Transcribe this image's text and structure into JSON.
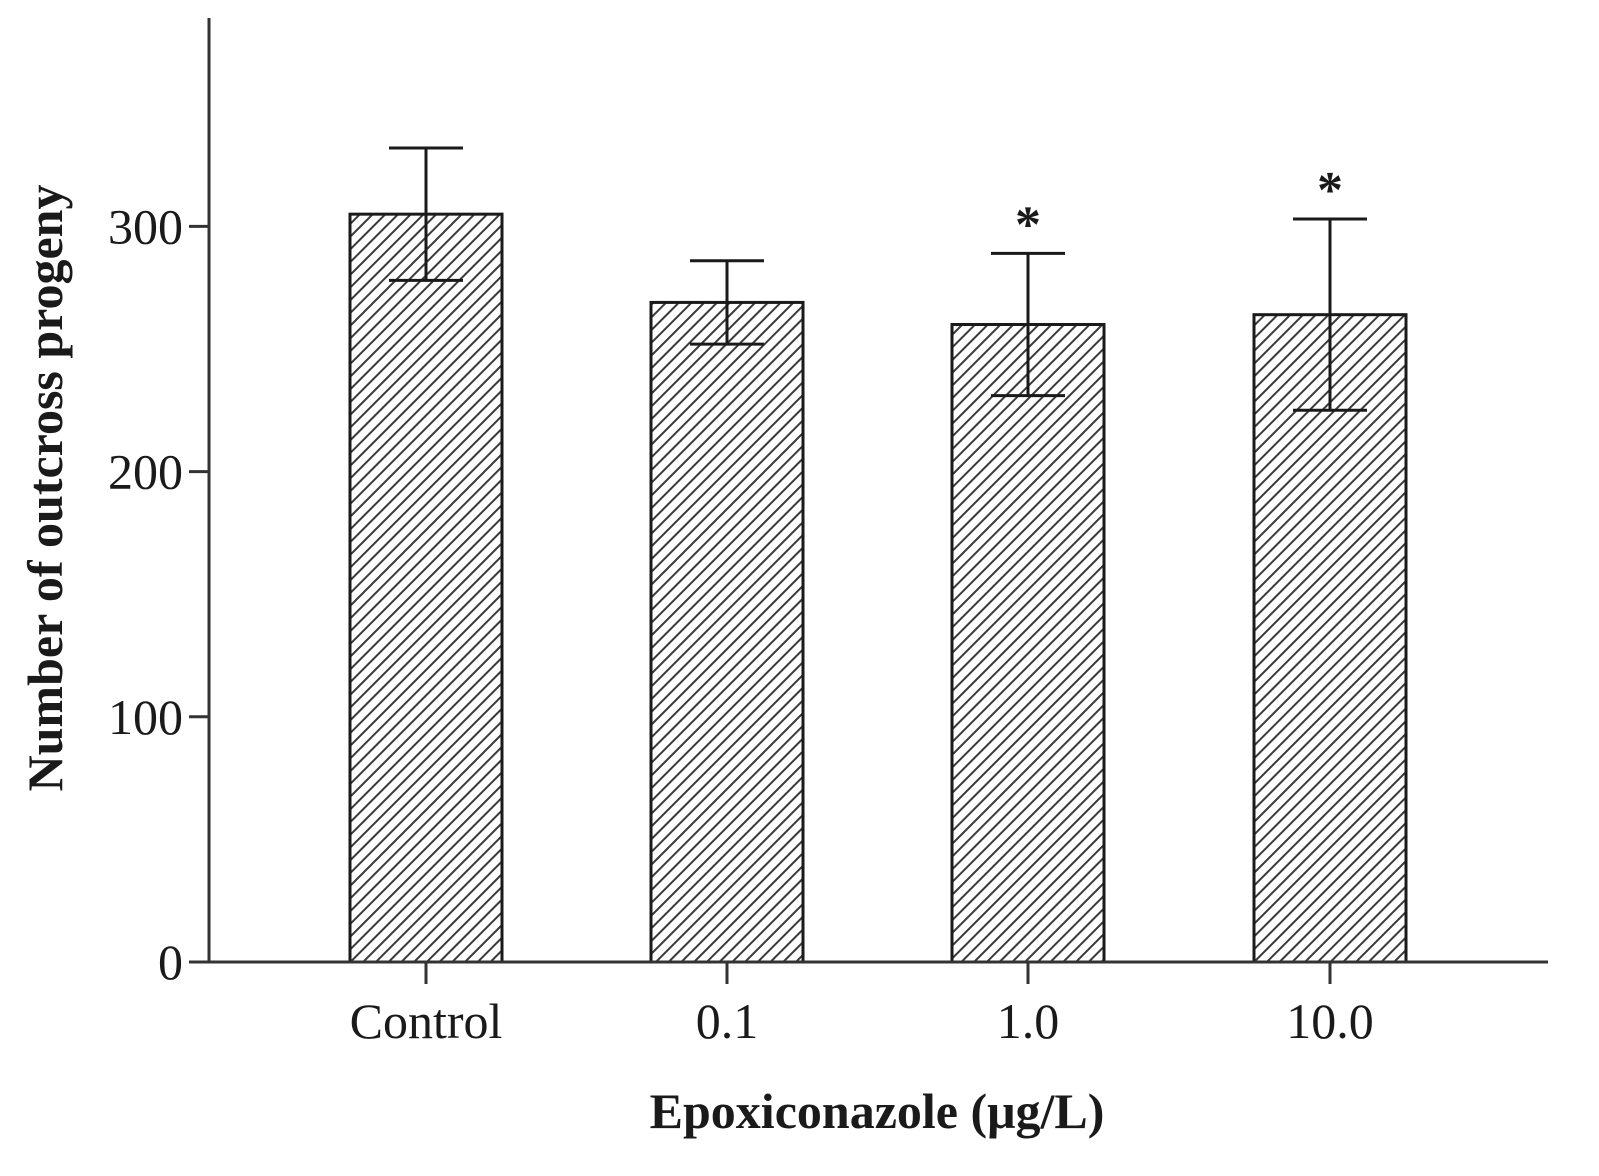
{
  "chart_data": {
    "type": "bar",
    "title": "",
    "xlabel": "Epoxiconazole (μg/L)",
    "ylabel": "Number of outcross progeny",
    "categories": [
      "Control",
      "0.1",
      "1.0",
      "10.0"
    ],
    "values": [
      305,
      269,
      260,
      264
    ],
    "error": [
      27,
      17,
      29,
      39
    ],
    "significance": [
      "",
      "",
      "*",
      "*"
    ],
    "ylim": [
      0,
      385
    ],
    "yticks": [
      0,
      100,
      200,
      300
    ],
    "ytick_labels": [
      "0",
      "100",
      "200",
      "300"
    ],
    "grid": false,
    "bar_pattern": "diagonal-hatch",
    "colors": {
      "bar_fill": "#ffffff",
      "hatch": "#3a3a3a",
      "bar_stroke": "#1a1a1a",
      "axis": "#333333",
      "text": "#1a1a1a"
    }
  }
}
